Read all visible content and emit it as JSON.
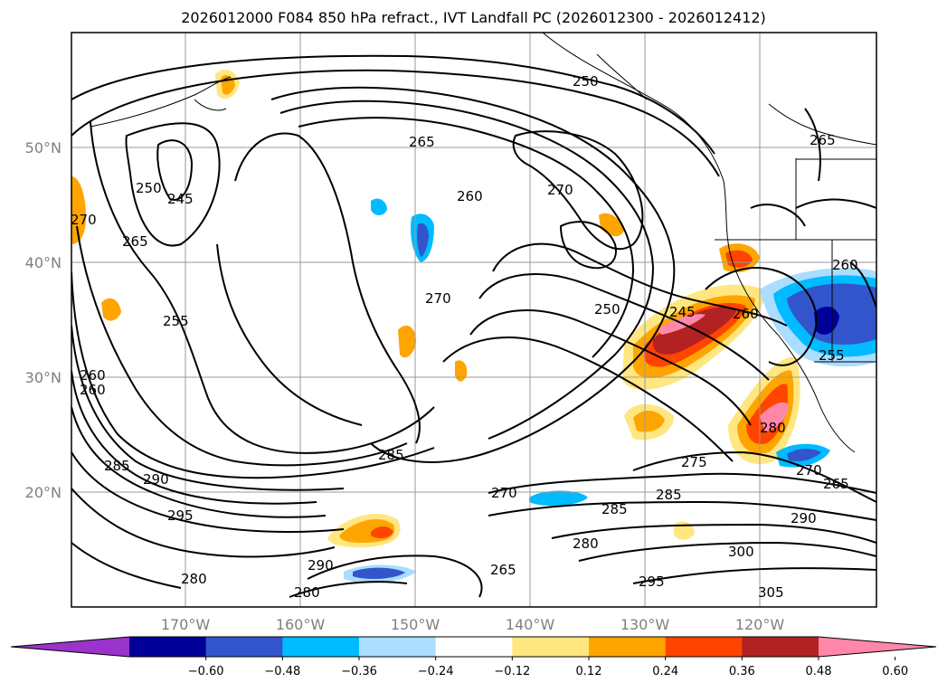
{
  "title": "2026012000 F084 850 hPa refract., IVT Landfall PC (2026012300 - 2026012412)",
  "chart_data": {
    "type": "map-contour",
    "lat_labels": [
      "50°N",
      "40°N",
      "30°N",
      "20°N"
    ],
    "lon_labels": [
      "170°W",
      "160°W",
      "150°W",
      "140°W",
      "130°W",
      "120°W"
    ],
    "contour_labels": [
      "250",
      "265",
      "245",
      "250",
      "265",
      "270",
      "255",
      "260",
      "260",
      "285",
      "290",
      "295",
      "280",
      "290",
      "280",
      "265",
      "260",
      "270",
      "270",
      "250",
      "245",
      "260",
      "285",
      "270",
      "285",
      "280",
      "285",
      "275",
      "280",
      "270",
      "265",
      "290",
      "300",
      "295",
      "305",
      "265",
      "260",
      "255"
    ],
    "colorbar": {
      "ticks": [
        "−0.60",
        "−0.48",
        "−0.36",
        "−0.24",
        "−0.12",
        "0.12",
        "0.24",
        "0.36",
        "0.48",
        "0.60"
      ],
      "colors": [
        "#9933cc",
        "#000099",
        "#3355cc",
        "#00bbff",
        "#aaddff",
        "#ffffff",
        "#ffe680",
        "#ffa500",
        "#ff4400",
        "#b22222",
        "#ff88aa"
      ]
    }
  }
}
